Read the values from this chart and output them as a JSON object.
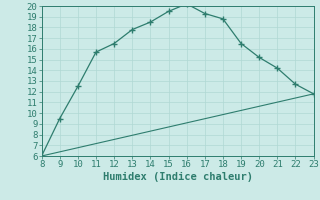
{
  "xlabel": "Humidex (Indice chaleur)",
  "ylabel": "",
  "background_color": "#cceae7",
  "line_color": "#2e7d6e",
  "xlim": [
    8,
    23
  ],
  "ylim": [
    6,
    20
  ],
  "xticks": [
    8,
    9,
    10,
    11,
    12,
    13,
    14,
    15,
    16,
    17,
    18,
    19,
    20,
    21,
    22,
    23
  ],
  "yticks": [
    6,
    7,
    8,
    9,
    10,
    11,
    12,
    13,
    14,
    15,
    16,
    17,
    18,
    19,
    20
  ],
  "curve1_x": [
    8,
    9,
    10,
    11,
    12,
    13,
    14,
    15,
    16,
    17,
    18,
    19,
    20,
    21,
    22,
    23
  ],
  "curve1_y": [
    6.0,
    9.5,
    12.5,
    15.7,
    16.5,
    17.8,
    18.5,
    19.5,
    20.2,
    19.3,
    18.8,
    16.5,
    15.2,
    14.2,
    12.7,
    11.8
  ],
  "curve2_x": [
    8,
    23
  ],
  "curve2_y": [
    6.0,
    11.8
  ],
  "grid_color": "#b0d8d4",
  "tick_fontsize": 6.5,
  "xlabel_fontsize": 7.5
}
